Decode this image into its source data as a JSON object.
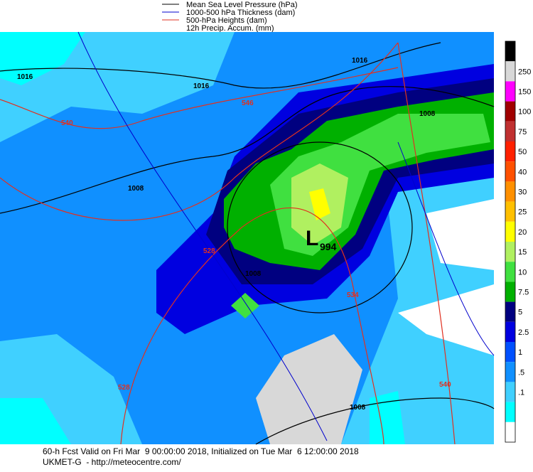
{
  "legend": [
    {
      "label": "Mean Sea Level Pressure (hPa)",
      "color": "#000000"
    },
    {
      "label": "1000-500 hPa Thickness (dam)",
      "color": "#0000cc"
    },
    {
      "label": "500-hPa Heights (dam)",
      "color": "#e03020"
    },
    {
      "label": "12h Precip. Accum. (mm)"
    }
  ],
  "map": {
    "contour_labels": [
      "1016",
      "1016",
      "1016",
      "540",
      "546",
      "1008",
      "1008",
      "528",
      "1008",
      "534",
      "528",
      "540",
      "1008"
    ],
    "low": {
      "symbol": "L",
      "value": "994"
    }
  },
  "colorbar": {
    "colors": [
      "#000000",
      "#d8d8d8",
      "#ff00ff",
      "#a00000",
      "#c03030",
      "#ff2000",
      "#ff5000",
      "#ff9000",
      "#ffc000",
      "#ffff00",
      "#b0f060",
      "#40e040",
      "#00b000",
      "#000080",
      "#0000e0",
      "#0050ff",
      "#1090ff",
      "#40d0ff",
      "#00ffff",
      "#ffffff"
    ],
    "labels": [
      "250",
      "150",
      "100",
      "75",
      "50",
      "40",
      "30",
      "25",
      "20",
      "15",
      "10",
      "7.5",
      "5",
      "2.5",
      "1",
      ".5",
      ".1"
    ]
  },
  "footer": [
    "60-h Fcst Valid on Fri Mar  9 00:00:00 2018, Initialized on Tue Mar  6 12:00:00 2018",
    "UKMET-G  - http://meteocentre.com/"
  ]
}
